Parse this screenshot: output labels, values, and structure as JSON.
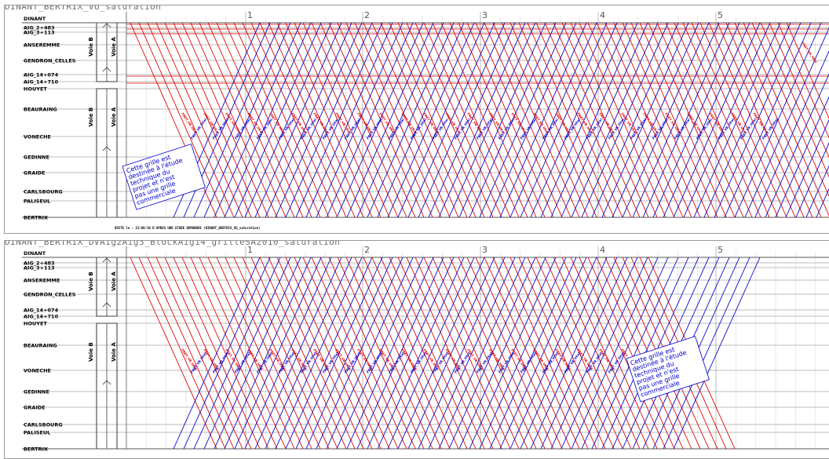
{
  "colors": {
    "down": "#dd0000",
    "up": "#0000cc",
    "grid": "#555555",
    "note": "#0000cc"
  },
  "diagrams": [
    {
      "title": "DINANT_BERTRIX_VU_saturation",
      "footnote": "EDITE le : 23/08/10 D'APRES UNE ETUDE DEMANDEE (DINANT_BERTRIX_VU_saturation)",
      "hour_labels": [
        "1",
        "2",
        "3",
        "4",
        "5"
      ],
      "voie_labels": [
        "Voie B",
        "Voie A",
        "Voie B",
        "Voie A"
      ],
      "note": [
        "Cette grille est",
        "destinée à l'étude",
        "technique du",
        "projet et n'est",
        "pas une grille",
        "commerciale"
      ],
      "train_label": "FRET_VB_Ukai",
      "train_label_top": "FRET_VA_Ukai"
    },
    {
      "title": "DINANT_BERTRIX_DVAig2Aig3_BlockAig14_grilleSA2010_saturation",
      "footnote": "",
      "hour_labels": [
        "1",
        "2",
        "3",
        "4",
        "5"
      ],
      "voie_labels": [
        "Voie B",
        "Voie A",
        "Voie B",
        "Voie A"
      ],
      "note": [
        "Cette grille est",
        "destinée à l'étude",
        "technique du",
        "projet et n'est",
        "pas une grille",
        "commerciale"
      ],
      "train_label": "FRET_VB_Ukai",
      "train_label_top": ""
    }
  ],
  "stations": [
    "DINANT",
    "AIG_2+483",
    "AIG_3+113",
    "ANSEREMME",
    "GENDRON_CELLES",
    "AIG_14+074",
    "AIG_14+710",
    "HOUYET",
    "BEAURAING",
    "VONECHE",
    "GEDINNE",
    "GRAIDE",
    "CARLSBOURG",
    "PALISEUL",
    "BERTRIX"
  ]
}
